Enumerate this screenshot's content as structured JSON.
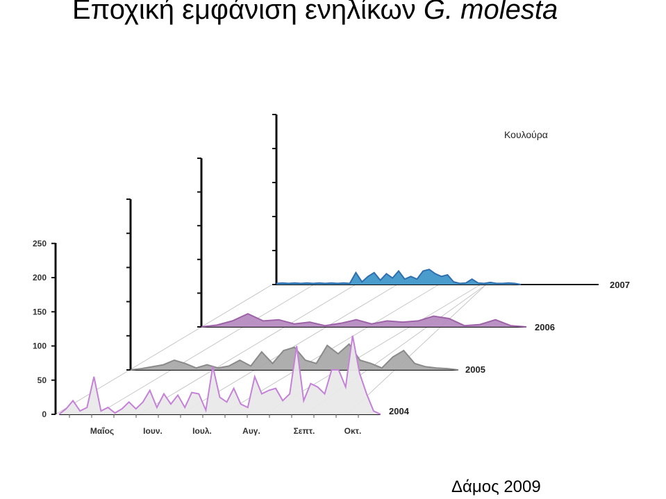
{
  "slide": {
    "title_main": "Εποχική εμφάνιση ενηλίκων",
    "title_species": "G. molesta",
    "credit": "Δάμος 2009"
  },
  "chart_data": {
    "type": "area",
    "title": "Κουλούρα",
    "y_ticks": [
      "250",
      "200",
      "150",
      "100",
      "50",
      "0"
    ],
    "ylim": [
      0,
      250
    ],
    "x_ticks": [
      "Μαΐος",
      "Ιουν.",
      "Ιουλ.",
      "Αυγ.",
      "Σεπτ.",
      "Οκτ."
    ],
    "series": [
      {
        "name": "2004",
        "color": "#c580d8",
        "fill": "#e9e9e9",
        "values": [
          0,
          8,
          20,
          5,
          10,
          55,
          5,
          10,
          2,
          8,
          18,
          8,
          18,
          35,
          10,
          30,
          15,
          28,
          10,
          32,
          30,
          6,
          70,
          25,
          18,
          38,
          15,
          10,
          55,
          30,
          35,
          38,
          20,
          30,
          100,
          20,
          45,
          40,
          30,
          65,
          65,
          40,
          115,
          60,
          30,
          5,
          0
        ]
      },
      {
        "name": "2005",
        "color": "#8a8a8a",
        "fill": "#aaaaaa",
        "values": [
          0,
          2,
          5,
          8,
          15,
          10,
          3,
          8,
          3,
          6,
          15,
          6,
          28,
          10,
          30,
          35,
          15,
          10,
          38,
          25,
          40,
          15,
          10,
          3,
          20,
          30,
          10,
          5,
          3,
          2,
          0
        ]
      },
      {
        "name": "2006",
        "color": "#9e62a8",
        "fill": "#b58bc0",
        "values": [
          0,
          3,
          10,
          22,
          10,
          12,
          5,
          8,
          2,
          6,
          12,
          5,
          10,
          8,
          10,
          18,
          14,
          2,
          4,
          12,
          2,
          0
        ]
      },
      {
        "name": "2007",
        "color": "#2f6fb0",
        "fill": "#3f97c9",
        "values": [
          2,
          3,
          2,
          3,
          2,
          3,
          2,
          3,
          2,
          3,
          2,
          3,
          2,
          22,
          5,
          15,
          22,
          8,
          20,
          12,
          25,
          10,
          15,
          10,
          25,
          28,
          20,
          15,
          18,
          5,
          2,
          3,
          10,
          3,
          2,
          4,
          2,
          2,
          3,
          2,
          0
        ]
      }
    ]
  }
}
